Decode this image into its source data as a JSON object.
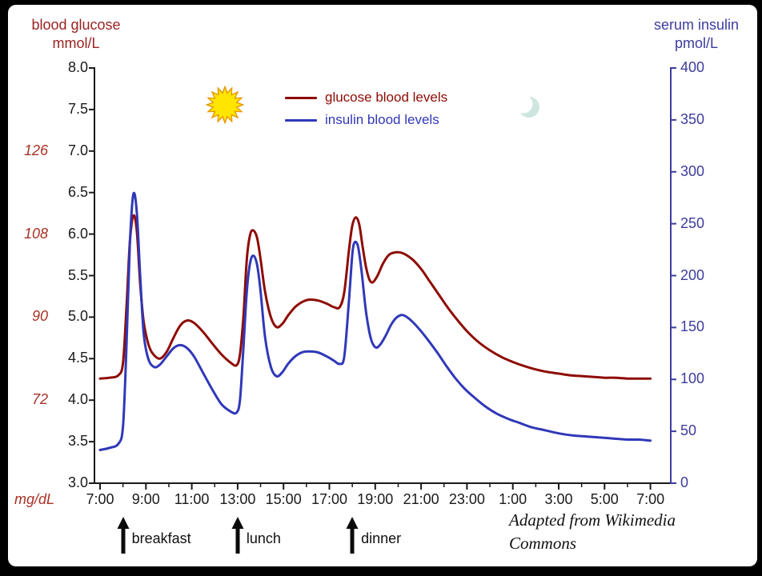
{
  "frame": {
    "background": "#000000",
    "panel": "#ffffff"
  },
  "left_axis": {
    "title_line1": "blood glucose",
    "title_line2": "mmol/L",
    "title_color": "#9c2222",
    "tick_color": "#1a1a1a",
    "tick_labels": [
      "8.0",
      "7.5",
      "7.0",
      "6.5",
      "6.0",
      "5.5",
      "5.0",
      "4.5",
      "4.0",
      "3.5",
      "3.0"
    ]
  },
  "mgdl_axis": {
    "unit": "mg/dL",
    "color": "#a93226",
    "labels": [
      {
        "text": "126",
        "mmol": 7.0
      },
      {
        "text": "108",
        "mmol": 6.0
      },
      {
        "text": "90",
        "mmol": 5.0
      },
      {
        "text": "72",
        "mmol": 4.0
      }
    ]
  },
  "right_axis": {
    "title_line1": "serum insulin",
    "title_line2": "pmol/L",
    "color": "#3c3c9e",
    "tick_labels": [
      "400",
      "350",
      "300",
      "250",
      "200",
      "150",
      "100",
      "50",
      "0"
    ]
  },
  "x_axis": {
    "color": "#1a1a1a",
    "tick_labels": [
      "7:00",
      "9:00",
      "11:00",
      "13:00",
      "15:00",
      "17:00",
      "19:00",
      "21:00",
      "23:00",
      "1:00",
      "3:00",
      "5:00",
      "7:00"
    ]
  },
  "legend": {
    "items": [
      {
        "label": "glucose blood levels",
        "color": "#8e0b04"
      },
      {
        "label": "insulin blood levels",
        "color": "#3038b8"
      }
    ]
  },
  "attribution": {
    "line1": "Adapted from Wikimedia",
    "line2": "Commons"
  },
  "icons": {
    "sun": "sun-icon",
    "moon": "moon-icon",
    "meal_marker": "up-arrow-icon"
  },
  "chart_data": {
    "type": "line",
    "title": "",
    "x": {
      "unit": "time of day",
      "range_hours": [
        7,
        31
      ],
      "tick_labels": [
        "7:00",
        "9:00",
        "11:00",
        "13:00",
        "15:00",
        "17:00",
        "19:00",
        "21:00",
        "23:00",
        "1:00",
        "3:00",
        "5:00",
        "7:00"
      ]
    },
    "y_left": {
      "label": "blood glucose (mmol/L)",
      "range": [
        3.0,
        8.0
      ],
      "tick_step": 0.5
    },
    "y_right": {
      "label": "serum insulin (pmol/L)",
      "range": [
        0,
        400
      ],
      "tick_step": 50
    },
    "legend_position": "top-center",
    "grid": false,
    "series": [
      {
        "name": "glucose blood levels",
        "axis": "left",
        "color": "#8e0b04",
        "points": [
          [
            7.0,
            4.26
          ],
          [
            7.4,
            4.27
          ],
          [
            7.8,
            4.3
          ],
          [
            8.0,
            4.45
          ],
          [
            8.15,
            5.1
          ],
          [
            8.3,
            5.9
          ],
          [
            8.45,
            6.22
          ],
          [
            8.6,
            6.05
          ],
          [
            8.75,
            5.4
          ],
          [
            8.9,
            4.95
          ],
          [
            9.1,
            4.68
          ],
          [
            9.3,
            4.56
          ],
          [
            9.6,
            4.5
          ],
          [
            9.9,
            4.58
          ],
          [
            10.2,
            4.75
          ],
          [
            10.5,
            4.9
          ],
          [
            10.8,
            4.96
          ],
          [
            11.1,
            4.93
          ],
          [
            11.5,
            4.82
          ],
          [
            11.9,
            4.68
          ],
          [
            12.3,
            4.55
          ],
          [
            12.7,
            4.45
          ],
          [
            12.95,
            4.42
          ],
          [
            13.1,
            4.55
          ],
          [
            13.25,
            5.0
          ],
          [
            13.4,
            5.7
          ],
          [
            13.55,
            6.0
          ],
          [
            13.7,
            6.04
          ],
          [
            13.85,
            5.95
          ],
          [
            14.0,
            5.7
          ],
          [
            14.2,
            5.3
          ],
          [
            14.45,
            5.0
          ],
          [
            14.7,
            4.88
          ],
          [
            14.95,
            4.92
          ],
          [
            15.2,
            5.02
          ],
          [
            15.5,
            5.12
          ],
          [
            15.8,
            5.18
          ],
          [
            16.1,
            5.21
          ],
          [
            16.5,
            5.2
          ],
          [
            16.9,
            5.16
          ],
          [
            17.2,
            5.12
          ],
          [
            17.45,
            5.12
          ],
          [
            17.65,
            5.3
          ],
          [
            17.85,
            5.8
          ],
          [
            18.0,
            6.1
          ],
          [
            18.15,
            6.2
          ],
          [
            18.3,
            6.12
          ],
          [
            18.45,
            5.85
          ],
          [
            18.6,
            5.6
          ],
          [
            18.75,
            5.45
          ],
          [
            18.9,
            5.42
          ],
          [
            19.1,
            5.5
          ],
          [
            19.35,
            5.65
          ],
          [
            19.6,
            5.75
          ],
          [
            19.9,
            5.78
          ],
          [
            20.2,
            5.77
          ],
          [
            20.6,
            5.7
          ],
          [
            21.0,
            5.58
          ],
          [
            21.4,
            5.42
          ],
          [
            21.8,
            5.26
          ],
          [
            22.2,
            5.1
          ],
          [
            22.6,
            4.96
          ],
          [
            23.0,
            4.83
          ],
          [
            23.5,
            4.7
          ],
          [
            24.0,
            4.6
          ],
          [
            24.5,
            4.52
          ],
          [
            25.0,
            4.46
          ],
          [
            25.5,
            4.41
          ],
          [
            26.0,
            4.37
          ],
          [
            26.5,
            4.34
          ],
          [
            27.0,
            4.32
          ],
          [
            27.5,
            4.3
          ],
          [
            28.0,
            4.29
          ],
          [
            28.5,
            4.28
          ],
          [
            29.0,
            4.27
          ],
          [
            29.5,
            4.27
          ],
          [
            30.0,
            4.26
          ],
          [
            30.5,
            4.26
          ],
          [
            31.0,
            4.26
          ]
        ]
      },
      {
        "name": "insulin blood levels",
        "axis": "right",
        "color": "#3038b8",
        "points": [
          [
            7.0,
            32
          ],
          [
            7.4,
            34
          ],
          [
            7.8,
            38
          ],
          [
            8.0,
            55
          ],
          [
            8.15,
            130
          ],
          [
            8.3,
            230
          ],
          [
            8.45,
            278
          ],
          [
            8.6,
            262
          ],
          [
            8.75,
            200
          ],
          [
            8.9,
            145
          ],
          [
            9.1,
            120
          ],
          [
            9.35,
            112
          ],
          [
            9.6,
            114
          ],
          [
            9.9,
            122
          ],
          [
            10.2,
            130
          ],
          [
            10.5,
            133
          ],
          [
            10.8,
            130
          ],
          [
            11.1,
            122
          ],
          [
            11.5,
            106
          ],
          [
            11.9,
            90
          ],
          [
            12.3,
            76
          ],
          [
            12.7,
            69
          ],
          [
            12.95,
            68
          ],
          [
            13.1,
            80
          ],
          [
            13.25,
            130
          ],
          [
            13.4,
            185
          ],
          [
            13.55,
            213
          ],
          [
            13.7,
            219
          ],
          [
            13.85,
            210
          ],
          [
            14.0,
            185
          ],
          [
            14.2,
            140
          ],
          [
            14.45,
            112
          ],
          [
            14.7,
            103
          ],
          [
            14.95,
            107
          ],
          [
            15.2,
            115
          ],
          [
            15.5,
            122
          ],
          [
            15.8,
            126
          ],
          [
            16.1,
            127
          ],
          [
            16.5,
            126
          ],
          [
            16.9,
            122
          ],
          [
            17.2,
            118
          ],
          [
            17.45,
            115
          ],
          [
            17.65,
            122
          ],
          [
            17.85,
            175
          ],
          [
            18.0,
            220
          ],
          [
            18.1,
            232
          ],
          [
            18.25,
            228
          ],
          [
            18.4,
            205
          ],
          [
            18.6,
            165
          ],
          [
            18.8,
            140
          ],
          [
            19.0,
            131
          ],
          [
            19.2,
            133
          ],
          [
            19.45,
            142
          ],
          [
            19.7,
            153
          ],
          [
            19.95,
            160
          ],
          [
            20.2,
            162
          ],
          [
            20.5,
            158
          ],
          [
            20.9,
            149
          ],
          [
            21.3,
            138
          ],
          [
            21.7,
            126
          ],
          [
            22.1,
            113
          ],
          [
            22.5,
            101
          ],
          [
            22.9,
            91
          ],
          [
            23.3,
            83
          ],
          [
            23.8,
            74
          ],
          [
            24.3,
            67
          ],
          [
            24.8,
            62
          ],
          [
            25.3,
            58
          ],
          [
            25.8,
            54
          ],
          [
            26.4,
            51
          ],
          [
            27.0,
            48
          ],
          [
            27.6,
            46
          ],
          [
            28.2,
            45
          ],
          [
            28.8,
            44
          ],
          [
            29.4,
            43
          ],
          [
            30.0,
            42
          ],
          [
            30.5,
            42
          ],
          [
            31.0,
            41
          ]
        ]
      }
    ],
    "annotations": {
      "meals": [
        {
          "label": "breakfast",
          "hour": 8
        },
        {
          "label": "lunch",
          "hour": 13
        },
        {
          "label": "dinner",
          "hour": 18
        }
      ],
      "mg_dl_equivalents": [
        {
          "mg_dl": 126,
          "mmol": 7.0
        },
        {
          "mg_dl": 108,
          "mmol": 6.0
        },
        {
          "mg_dl": 90,
          "mmol": 5.0
        },
        {
          "mg_dl": 72,
          "mmol": 4.0
        }
      ],
      "day_icon": "sun",
      "night_icon": "moon"
    }
  }
}
